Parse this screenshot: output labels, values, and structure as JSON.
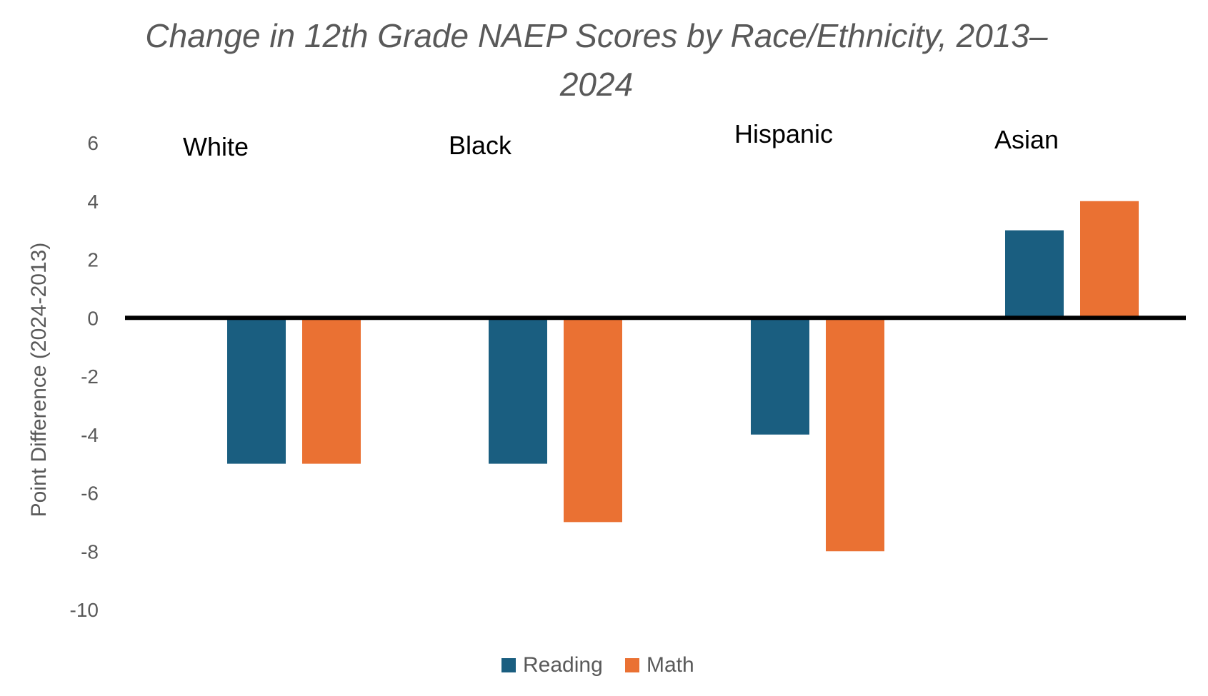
{
  "chart_data": {
    "type": "bar",
    "title_line1": "Change in 12th Grade NAEP Scores by Race/Ethnicity, 2013–",
    "title_line2": "2024",
    "xlabel": "",
    "ylabel": "Point Difference (2024-2013)",
    "categories": [
      "White",
      "Black",
      "Hispanic",
      "Asian"
    ],
    "series": [
      {
        "name": "Reading",
        "color": "#1a5e80",
        "values": [
          -5,
          -5,
          -4,
          3
        ]
      },
      {
        "name": "Math",
        "color": "#ea7133",
        "values": [
          -5,
          -7,
          -8,
          4
        ]
      }
    ],
    "ylim": [
      -10,
      6
    ],
    "yticks": [
      6,
      4,
      2,
      0,
      -2,
      -4,
      -6,
      -8,
      -10
    ],
    "grid": false,
    "legend_position": "bottom",
    "zero_line_color": "#000000"
  }
}
